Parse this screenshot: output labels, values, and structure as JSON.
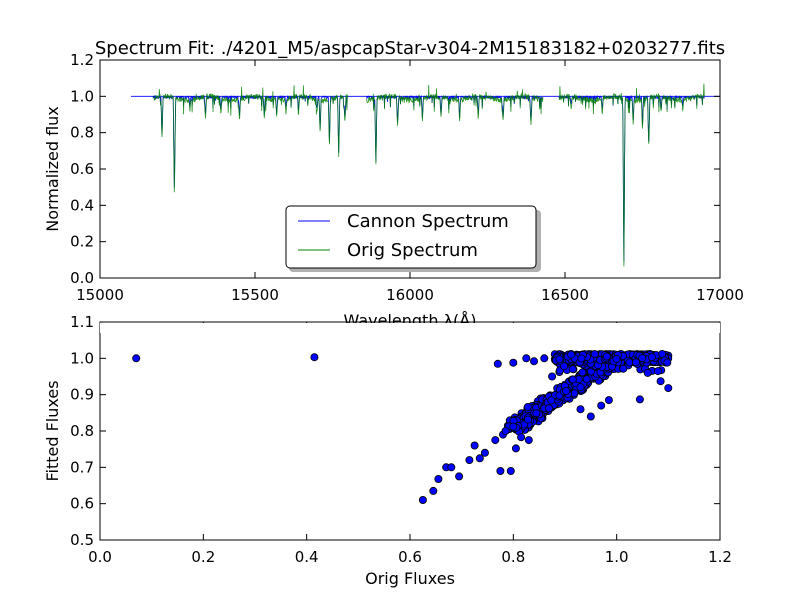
{
  "chart_data": [
    {
      "type": "line",
      "title": "Spectrum Fit: ./4201_M5/aspcapStar-v304-2M15183182+0203277.fits",
      "xlabel": "Wavelength λ(Å)",
      "ylabel": "Normalized flux",
      "xlim": [
        15000,
        17000
      ],
      "ylim": [
        0.0,
        1.2
      ],
      "xticks": [
        "15000",
        "15500",
        "16000",
        "16500",
        "17000"
      ],
      "yticks": [
        "0.0",
        "0.2",
        "0.4",
        "0.6",
        "0.8",
        "1.0",
        "1.2"
      ],
      "chips": [
        [
          15170,
          15800
        ],
        [
          15860,
          16430
        ],
        [
          16480,
          16950
        ]
      ],
      "absorption_lines": [
        [
          15200,
          0.77
        ],
        [
          15240,
          0.42
        ],
        [
          15290,
          0.92
        ],
        [
          15340,
          0.87
        ],
        [
          15390,
          0.9
        ],
        [
          15450,
          0.86
        ],
        [
          15530,
          0.88
        ],
        [
          15570,
          0.87
        ],
        [
          15600,
          0.91
        ],
        [
          15640,
          0.89
        ],
        [
          15700,
          0.91
        ],
        [
          15710,
          0.8
        ],
        [
          15740,
          0.73
        ],
        [
          15770,
          0.67
        ],
        [
          15790,
          0.85
        ],
        [
          15890,
          0.62
        ],
        [
          15960,
          0.82
        ],
        [
          16040,
          0.86
        ],
        [
          16100,
          0.88
        ],
        [
          16160,
          0.86
        ],
        [
          16220,
          0.88
        ],
        [
          16300,
          0.85
        ],
        [
          16390,
          0.83
        ],
        [
          16520,
          0.93
        ],
        [
          16620,
          0.9
        ],
        [
          16690,
          0.07
        ],
        [
          16720,
          0.85
        ],
        [
          16750,
          0.82
        ],
        [
          16770,
          0.7
        ],
        [
          16810,
          0.91
        ],
        [
          16880,
          0.92
        ]
      ],
      "series": [
        {
          "name": "Cannon Spectrum",
          "color": "#0000ff"
        },
        {
          "name": "Orig Spectrum",
          "color": "#008000"
        }
      ],
      "legend": "lower-center"
    },
    {
      "type": "scatter",
      "xlabel": "Orig Fluxes",
      "ylabel": "Fitted Fluxes",
      "xlim": [
        0.0,
        1.2
      ],
      "ylim": [
        0.5,
        1.1
      ],
      "xticks": [
        "0.0",
        "0.2",
        "0.4",
        "0.6",
        "0.8",
        "1.0",
        "1.2"
      ],
      "yticks": [
        "0.5",
        "0.6",
        "0.7",
        "0.8",
        "0.9",
        "1.0",
        "1.1"
      ],
      "marker_color": "#0000ff",
      "points": [
        [
          0.07,
          1.0
        ],
        [
          0.415,
          1.003
        ],
        [
          0.625,
          0.61
        ],
        [
          0.645,
          0.635
        ],
        [
          0.655,
          0.668
        ],
        [
          0.67,
          0.7
        ],
        [
          0.68,
          0.7
        ],
        [
          0.695,
          0.675
        ],
        [
          0.715,
          0.72
        ],
        [
          0.725,
          0.76
        ],
        [
          0.735,
          0.725
        ],
        [
          0.745,
          0.74
        ],
        [
          0.765,
          0.775
        ],
        [
          0.775,
          0.69
        ],
        [
          0.78,
          0.79
        ],
        [
          0.785,
          0.8
        ],
        [
          0.795,
          0.69
        ],
        [
          0.8,
          0.812
        ],
        [
          0.805,
          0.752
        ],
        [
          0.815,
          0.783
        ],
        [
          0.83,
          0.775
        ],
        [
          0.77,
          0.985
        ],
        [
          0.8,
          0.988
        ],
        [
          0.825,
          1.0
        ],
        [
          0.84,
          0.992
        ],
        [
          0.86,
          1.0
        ],
        [
          0.875,
          0.95
        ],
        [
          0.915,
          0.942
        ],
        [
          0.93,
          0.86
        ],
        [
          0.95,
          0.84
        ],
        [
          0.97,
          0.87
        ],
        [
          0.985,
          0.885
        ],
        [
          1.045,
          0.887
        ],
        [
          1.085,
          0.937
        ],
        [
          1.1,
          0.918
        ],
        [
          1.08,
          0.965
        ],
        [
          1.06,
          0.96
        ]
      ],
      "dense_band": {
        "x_from": 0.8,
        "x_to": 1.0,
        "y_from": 0.81,
        "y_to": 1.0,
        "count": 520
      },
      "plateau": {
        "x_from": 0.88,
        "x_to": 1.1,
        "y_center": 1.0,
        "y_spread": 0.012,
        "count": 420
      }
    }
  ]
}
